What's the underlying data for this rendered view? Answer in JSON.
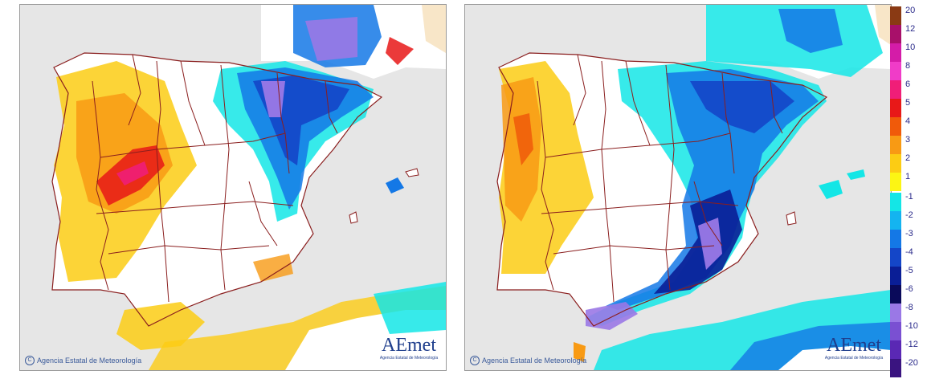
{
  "maps": [
    {
      "name": "left-map",
      "credit": "Agencia Estatal de Meteorología",
      "logo_text": "AEmet",
      "logo_subtitle": "Agencia Estatal de Meteorología"
    },
    {
      "name": "right-map",
      "credit": "Agencia Estatal de Meteorología",
      "logo_text": "AEmet",
      "logo_subtitle": "Agencia Estatal de Meteorología"
    }
  ],
  "legend": {
    "positive": [
      {
        "label": "20",
        "color": "#8a3a14"
      },
      {
        "label": "12",
        "color": "#a8106a"
      },
      {
        "label": "10",
        "color": "#d41ca8"
      },
      {
        "label": "8",
        "color": "#f03cc8"
      },
      {
        "label": "6",
        "color": "#f01e78"
      },
      {
        "label": "5",
        "color": "#e81818"
      },
      {
        "label": "4",
        "color": "#f05a0a"
      },
      {
        "label": "3",
        "color": "#f89a14"
      },
      {
        "label": "2",
        "color": "#fccc14"
      },
      {
        "label": "1",
        "color": "#fcf514"
      }
    ],
    "negative": [
      {
        "label": "-1",
        "color": "#14e6e6"
      },
      {
        "label": "-2",
        "color": "#14b4f0"
      },
      {
        "label": "-3",
        "color": "#1478e6"
      },
      {
        "label": "-4",
        "color": "#1446c8"
      },
      {
        "label": "-5",
        "color": "#0a1e96"
      },
      {
        "label": "-6",
        "color": "#0a0a5a"
      },
      {
        "label": "-8",
        "color": "#9a78e6"
      },
      {
        "label": "-10",
        "color": "#7a50d2"
      },
      {
        "label": "-12",
        "color": "#5a28b4"
      },
      {
        "label": "-20",
        "color": "#3a1480"
      }
    ]
  },
  "colors": {
    "sea": "#e6e6e6",
    "land": "#ffffff",
    "border": "#8a1e1e",
    "other_land": "#f8e6c8"
  }
}
